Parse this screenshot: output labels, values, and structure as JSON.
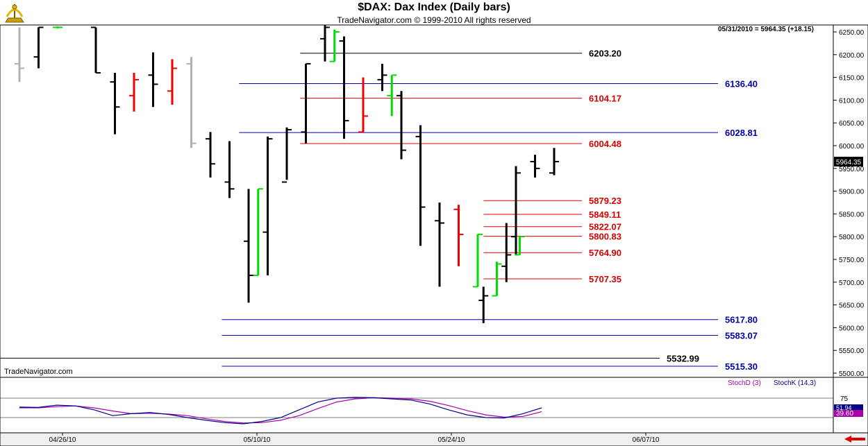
{
  "title": "$DAX:  Dax Index  (Daily bars)",
  "subtitle": "TradeNavigator.com © 1999-2010 All rights reserved",
  "watermark": "TradeNavigator.com",
  "last_quote": "05/31/2010 = 5964.35 (+18.15)",
  "price_tag": "5964.35",
  "icons": {
    "logo": "sextant-logo-icon",
    "scroll": "left-arrow-icon"
  },
  "colors": {
    "up": "#00dd00",
    "down": "#ee0000",
    "neutral": "#000000",
    "old": "#b0b0b0",
    "fib": "#dd0000",
    "support": "#0000aa",
    "stochD": "#aa00aa",
    "stochK": "#000088"
  },
  "chart_data": {
    "type": "ohlc",
    "yaxis": {
      "min": 5500,
      "max": 6250,
      "ticks": [
        5500,
        5550,
        5600,
        5650,
        5700,
        5750,
        5800,
        5850,
        5900,
        5950,
        6000,
        6050,
        6100,
        6150,
        6200,
        6250
      ]
    },
    "xaxis": {
      "labels": [
        "04/26/10",
        "05/10/10",
        "05/24/10",
        "06/07/10"
      ]
    },
    "bars": [
      {
        "x": 0,
        "high": 6260,
        "low": 6140,
        "open": 6180,
        "close": 6170,
        "color": "old"
      },
      {
        "x": 1,
        "high": 6260,
        "low": 6170,
        "open": 6195,
        "close": 6260,
        "color": "neutral"
      },
      {
        "x": 2,
        "high": 6262,
        "low": 6258,
        "open": 6260,
        "close": 6260,
        "color": "up"
      },
      {
        "x": 4,
        "high": 6260,
        "low": 6160,
        "open": 6260,
        "close": 6160,
        "color": "neutral"
      },
      {
        "x": 5,
        "high": 6160,
        "low": 6025,
        "open": 6140,
        "close": 6085,
        "color": "neutral"
      },
      {
        "x": 6,
        "high": 6160,
        "low": 6075,
        "open": 6110,
        "close": 6145,
        "color": "down"
      },
      {
        "x": 7,
        "high": 6205,
        "low": 6085,
        "open": 6155,
        "close": 6135,
        "color": "neutral"
      },
      {
        "x": 8,
        "high": 6190,
        "low": 6090,
        "open": 6120,
        "close": 6170,
        "color": "down"
      },
      {
        "x": 9,
        "high": 6195,
        "low": 5995,
        "open": 6180,
        "close": 6005,
        "color": "old"
      },
      {
        "x": 10,
        "high": 6030,
        "low": 5930,
        "open": 6015,
        "close": 5960,
        "color": "neutral"
      },
      {
        "x": 11,
        "high": 6010,
        "low": 5885,
        "open": 5920,
        "close": 5905,
        "color": "neutral"
      },
      {
        "x": 12,
        "high": 5905,
        "low": 5655,
        "open": 5790,
        "close": 5715,
        "color": "neutral"
      },
      {
        "x": 12.5,
        "high": 5905,
        "low": 5715,
        "open": 5715,
        "close": 5905,
        "color": "up"
      },
      {
        "x": 13,
        "high": 6020,
        "low": 5715,
        "open": 5810,
        "close": 6015,
        "color": "neutral"
      },
      {
        "x": 14,
        "high": 6040,
        "low": 5925,
        "open": 5920,
        "close": 6035,
        "color": "neutral"
      },
      {
        "x": 15,
        "high": 6180,
        "low": 6005,
        "open": 6030,
        "close": 6180,
        "color": "neutral"
      },
      {
        "x": 16,
        "high": 6265,
        "low": 6185,
        "open": 6235,
        "close": 6260,
        "color": "neutral"
      },
      {
        "x": 16.5,
        "high": 6255,
        "low": 6185,
        "open": 6185,
        "close": 6250,
        "color": "up"
      },
      {
        "x": 17,
        "high": 6240,
        "low": 6015,
        "open": 6230,
        "close": 6055,
        "color": "neutral"
      },
      {
        "x": 18,
        "high": 6150,
        "low": 6030,
        "open": 6030,
        "close": 6065,
        "color": "down"
      },
      {
        "x": 19,
        "high": 6180,
        "low": 6120,
        "open": 6145,
        "close": 6155,
        "color": "neutral"
      },
      {
        "x": 19.5,
        "high": 6155,
        "low": 6065,
        "open": 6110,
        "close": 6155,
        "color": "up"
      },
      {
        "x": 20,
        "high": 6120,
        "low": 5970,
        "open": 6110,
        "close": 5990,
        "color": "neutral"
      },
      {
        "x": 21,
        "high": 6045,
        "low": 5780,
        "open": 6020,
        "close": 5865,
        "color": "neutral"
      },
      {
        "x": 22,
        "high": 5875,
        "low": 5690,
        "open": 5835,
        "close": 5830,
        "color": "neutral"
      },
      {
        "x": 23,
        "high": 5870,
        "low": 5735,
        "open": 5860,
        "close": 5805,
        "color": "down"
      },
      {
        "x": 24,
        "high": 5805,
        "low": 5690,
        "open": 5690,
        "close": 5805,
        "color": "up"
      },
      {
        "x": 24.3,
        "high": 5690,
        "low": 5610,
        "open": 5660,
        "close": 5670,
        "color": "neutral"
      },
      {
        "x": 25,
        "high": 5745,
        "low": 5670,
        "open": 5670,
        "close": 5740,
        "color": "up"
      },
      {
        "x": 25.5,
        "high": 5830,
        "low": 5700,
        "open": 5735,
        "close": 5760,
        "color": "neutral"
      },
      {
        "x": 26,
        "high": 5955,
        "low": 5760,
        "open": 5800,
        "close": 5940,
        "color": "neutral"
      },
      {
        "x": 26.2,
        "high": 5800,
        "low": 5760,
        "open": 5760,
        "close": 5800,
        "color": "up"
      },
      {
        "x": 27,
        "high": 5980,
        "low": 5930,
        "open": 5965,
        "close": 5950,
        "color": "neutral"
      },
      {
        "x": 28,
        "high": 5995,
        "low": 5935,
        "open": 5940,
        "close": 5965,
        "color": "neutral"
      }
    ],
    "levels": [
      {
        "value": 6203.2,
        "label": "6203.20",
        "color": "neutral",
        "x_start": 14.7
      },
      {
        "value": 6136.4,
        "label": "6136.40",
        "color": "support",
        "x_start": 11.5
      },
      {
        "value": 6104.17,
        "label": "6104.17",
        "color": "fib",
        "x_start": 14.7
      },
      {
        "value": 6028.81,
        "label": "6028.81",
        "color": "support",
        "x_start": 11.5
      },
      {
        "value": 6004.48,
        "label": "6004.48",
        "color": "fib",
        "x_start": 14.7
      },
      {
        "value": 5879.23,
        "label": "5879.23",
        "color": "fib",
        "x_start": 24.3
      },
      {
        "value": 5849.11,
        "label": "5849.11",
        "color": "fib",
        "x_start": 24.3
      },
      {
        "value": 5822.07,
        "label": "5822.07",
        "color": "fib",
        "x_start": 24.3
      },
      {
        "value": 5800.83,
        "label": "5800.83",
        "color": "fib",
        "x_start": 24.3
      },
      {
        "value": 5764.9,
        "label": "5764.90",
        "color": "fib",
        "x_start": 24.3
      },
      {
        "value": 5707.35,
        "label": "5707.35",
        "color": "fib",
        "x_start": 24.3
      },
      {
        "value": 5617.8,
        "label": "5617.80",
        "color": "support",
        "x_start": 10.6
      },
      {
        "value": 5583.07,
        "label": "5583.07",
        "color": "support",
        "x_start": 10.6
      },
      {
        "value": 5532.99,
        "label": "5532.99",
        "color": "neutral",
        "x_start": -2
      },
      {
        "value": 5515.3,
        "label": "5515.30",
        "color": "support",
        "x_start": 10.6
      }
    ],
    "stochastic": {
      "labels": {
        "d": "StochD (3)",
        "k": "StochK (14,3)"
      },
      "ymax": 100,
      "ticks": [
        75
      ],
      "last_k_label": "51.94",
      "last_d_label": "39.60",
      "k": [
        52,
        51,
        57,
        55,
        45,
        30,
        35,
        38,
        33,
        25,
        18,
        12,
        9,
        15,
        25,
        45,
        65,
        75,
        77,
        76,
        73,
        70,
        60,
        45,
        32,
        25,
        24,
        35,
        50
      ],
      "d": [
        50,
        50,
        53,
        55,
        50,
        42,
        35,
        36,
        34,
        30,
        22,
        15,
        11,
        12,
        18,
        30,
        48,
        65,
        73,
        76,
        75,
        73,
        67,
        56,
        43,
        32,
        26,
        28,
        40
      ]
    }
  }
}
